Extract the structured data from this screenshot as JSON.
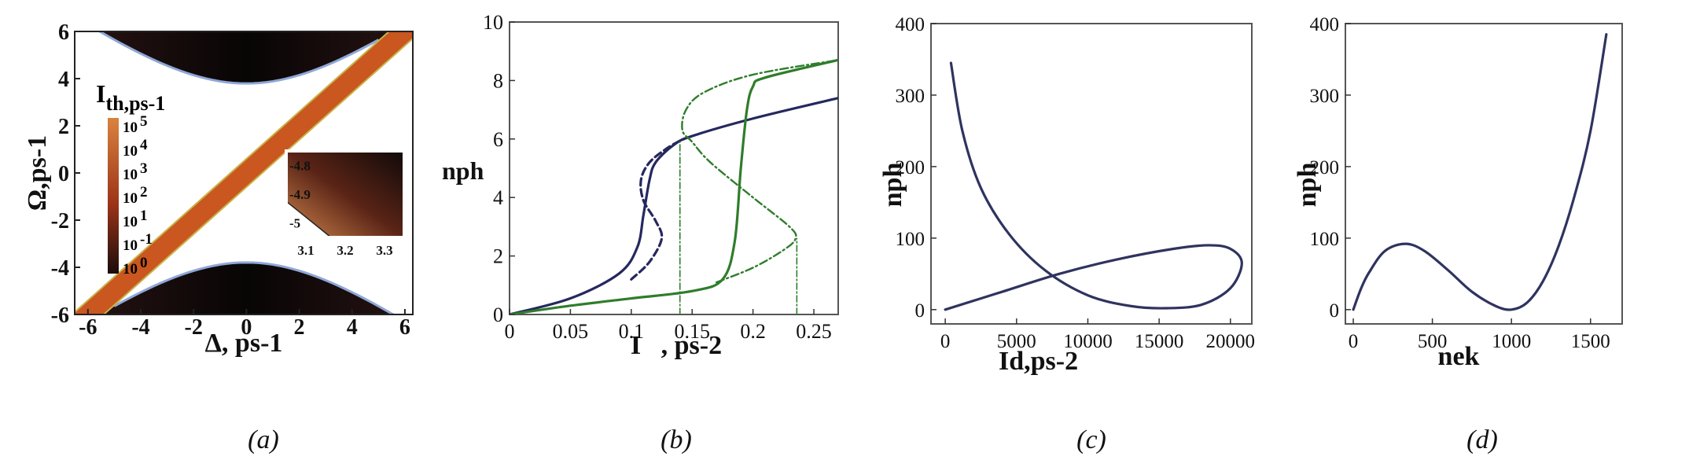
{
  "chart_data": [
    {
      "type": "heatmap",
      "caption": "(a)",
      "xlabel": "Δ, ps-1",
      "ylabel": "Ω,ps-1",
      "xlim": [
        -6.5,
        6.3
      ],
      "ylim": [
        -6,
        6
      ],
      "xticks": [
        "-6",
        "-4",
        "-2",
        "0",
        "2",
        "4",
        "6"
      ],
      "yticks": [
        "6",
        "4",
        "2",
        "0",
        "-2",
        "-4",
        "-6"
      ],
      "colorbar": {
        "title": "I",
        "title_sub": "th,ps-1",
        "labels": [
          "10 5",
          "10 4",
          "10 3",
          "10 2",
          "10 1",
          "10 -1",
          "10 0"
        ],
        "colors": [
          "#d9833f",
          "#9c3418",
          "#1a0c0c"
        ]
      },
      "region_colors": {
        "band": "#c9571f",
        "dark": "#170d0d",
        "contour": "#8fa7d6",
        "background": "#ffffff"
      },
      "inset": {
        "xticks": [
          "3.1",
          "3.2",
          "3.3"
        ],
        "yticks": [
          "-4.8",
          "-4.9",
          "-5"
        ],
        "xlim": [
          3.05,
          3.35
        ],
        "ylim": [
          -5.05,
          -4.75
        ]
      }
    },
    {
      "type": "line",
      "caption": "(b)",
      "xlabel": "I   , ps-2",
      "ylabel": "nph",
      "xlim": [
        0,
        0.27
      ],
      "ylim": [
        0,
        10
      ],
      "xticks": [
        "0",
        "0.05",
        "0.1",
        "0.15",
        "0.2",
        "0.25"
      ],
      "yticks": [
        "0",
        "2",
        "4",
        "6",
        "8",
        "10"
      ],
      "series": [
        {
          "color": "#25285e",
          "style": "solid",
          "x": [
            0,
            0.05,
            0.09,
            0.105,
            0.11,
            0.115,
            0.12,
            0.135,
            0.15,
            0.2,
            0.27
          ],
          "y": [
            0,
            0.55,
            1.4,
            2.3,
            3.4,
            4.6,
            5.2,
            5.8,
            6.1,
            6.7,
            7.4
          ]
        },
        {
          "color": "#25285e",
          "style": "dashed",
          "x": [
            0.1,
            0.115,
            0.125,
            0.12,
            0.11,
            0.108,
            0.115,
            0.13,
            0.143
          ],
          "y": [
            1.2,
            1.8,
            2.6,
            3.2,
            3.9,
            4.6,
            5.2,
            5.7,
            6.0
          ]
        },
        {
          "color": "#2f7d2b",
          "style": "solid",
          "x": [
            0,
            0.05,
            0.1,
            0.15,
            0.175,
            0.185,
            0.19,
            0.195,
            0.2,
            0.21,
            0.27
          ],
          "y": [
            0,
            0.3,
            0.55,
            0.8,
            1.2,
            2.5,
            5.0,
            7.0,
            7.8,
            8.1,
            8.7
          ]
        },
        {
          "color": "#2f7d2b",
          "style": "dashdot",
          "x": [
            0.17,
            0.2,
            0.225,
            0.235,
            0.23,
            0.2,
            0.165,
            0.15,
            0.142,
            0.145,
            0.16,
            0.2,
            0.27
          ],
          "y": [
            1.1,
            1.6,
            2.2,
            2.6,
            3.0,
            4.0,
            5.2,
            5.9,
            6.3,
            7.0,
            7.6,
            8.2,
            8.7
          ]
        },
        {
          "color": "#2f7d2b",
          "style": "vdash",
          "x": [
            0.14,
            0.14
          ],
          "y": [
            0,
            5.9
          ]
        },
        {
          "color": "#2f7d2b",
          "style": "vdash",
          "x": [
            0.236,
            0.236
          ],
          "y": [
            0,
            2.6
          ]
        }
      ]
    },
    {
      "type": "line",
      "caption": "(c)",
      "xlabel": "Id,ps-2",
      "ylabel": "nph",
      "xlim": [
        -1000,
        21500
      ],
      "ylim": [
        -20,
        400
      ],
      "xticks": [
        "0",
        "5000",
        "10000",
        "15000",
        "20000"
      ],
      "yticks": [
        "0",
        "100",
        "200",
        "300",
        "400"
      ],
      "series": [
        {
          "color": "#2f335f",
          "style": "solid",
          "x": [
            0,
            4000,
            8000,
            12000,
            16000,
            18500,
            20000,
            20800,
            20000,
            18000,
            15500,
            13000,
            10000,
            7000,
            4500,
            2500,
            1200,
            400
          ],
          "y": [
            0,
            25,
            50,
            70,
            85,
            90,
            85,
            65,
            30,
            7,
            2,
            5,
            20,
            55,
            105,
            170,
            250,
            345
          ]
        }
      ]
    },
    {
      "type": "line",
      "caption": "(d)",
      "xlabel": "nek",
      "ylabel": "nph",
      "xlim": [
        -50,
        1700
      ],
      "ylim": [
        -20,
        400
      ],
      "xticks": [
        "0",
        "500",
        "1000",
        "1500"
      ],
      "yticks": [
        "0",
        "100",
        "200",
        "300",
        "400"
      ],
      "series": [
        {
          "color": "#2f335f",
          "style": "solid",
          "x": [
            0,
            50,
            100,
            200,
            330,
            450,
            600,
            750,
            900,
            1000,
            1100,
            1200,
            1300,
            1400,
            1500,
            1600
          ],
          "y": [
            0,
            30,
            52,
            82,
            92,
            82,
            55,
            25,
            5,
            0,
            10,
            40,
            90,
            160,
            250,
            385
          ]
        }
      ]
    }
  ]
}
